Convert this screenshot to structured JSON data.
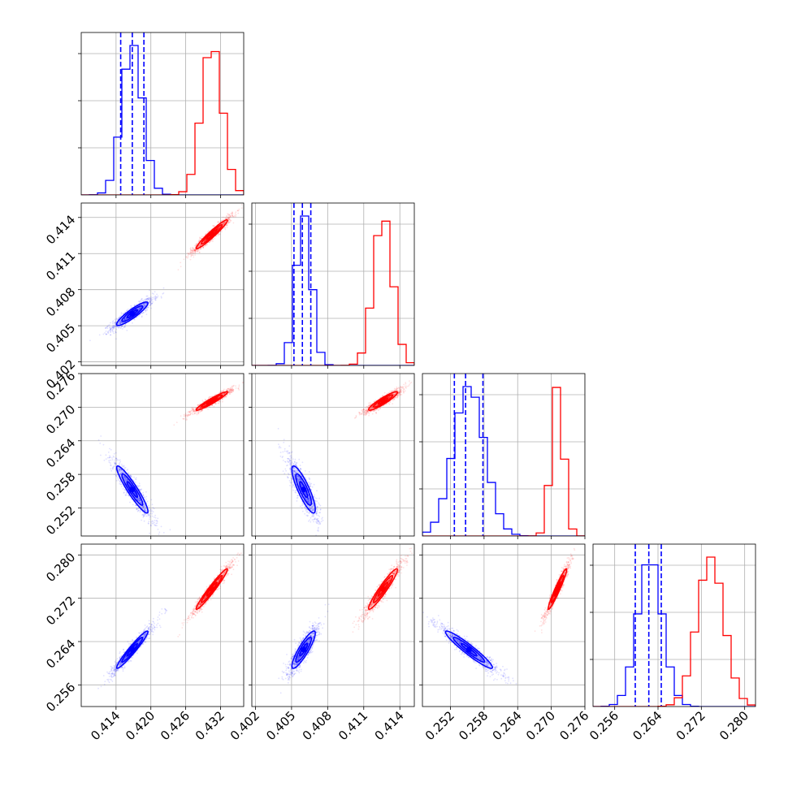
{
  "chart_data": {
    "type": "corner",
    "title": "",
    "parameters": [
      {
        "range": [
          0.408,
          0.436
        ],
        "ticks": [
          "0.414",
          "0.420",
          "0.426",
          "0.432"
        ],
        "tick_values": [
          0.414,
          0.42,
          0.426,
          0.432
        ]
      },
      {
        "range": [
          0.4017,
          0.4152
        ],
        "ticks": [
          "0.402",
          "0.405",
          "0.408",
          "0.411",
          "0.414"
        ],
        "tick_values": [
          0.402,
          0.405,
          0.408,
          0.411,
          0.414
        ]
      },
      {
        "range": [
          0.247,
          0.276
        ],
        "ticks": [
          "0.252",
          "0.258",
          "0.264",
          "0.270",
          "0.276"
        ],
        "tick_values": [
          0.252,
          0.258,
          0.264,
          0.27,
          0.276
        ]
      },
      {
        "range": [
          0.252,
          0.282
        ],
        "ticks": [
          "0.256",
          "0.264",
          "0.272",
          "0.280"
        ],
        "tick_values": [
          0.256,
          0.264,
          0.272,
          0.28
        ]
      }
    ],
    "grid": true,
    "series": [
      {
        "color": "#0000ff",
        "means": [
          0.4168,
          0.406,
          0.2553,
          0.2625
        ],
        "sigmas": [
          0.0018,
          0.00065,
          0.0028,
          0.0023
        ],
        "correlations": {
          "1-0": 0.9,
          "2-0": -0.93,
          "2-1": -0.85,
          "3-0": 0.96,
          "3-1": 0.88,
          "3-2": -0.95
        },
        "quantiles": [
          [
            0.4148,
            0.4168,
            0.4188
          ],
          [
            0.4052,
            0.4059,
            0.4066
          ],
          [
            0.2527,
            0.2547,
            0.2578
          ],
          [
            0.2598,
            0.2623,
            0.2646
          ]
        ]
      },
      {
        "color": "#ff0000",
        "means": [
          0.4305,
          0.4126,
          0.2711,
          0.2737
        ],
        "sigmas": [
          0.0018,
          0.0008,
          0.0011,
          0.0025
        ],
        "correlations": {
          "1-0": 0.96,
          "2-0": 0.95,
          "2-1": 0.92,
          "3-0": 0.97,
          "3-1": 0.95,
          "3-2": 0.96
        },
        "quantiles": []
      }
    ]
  }
}
